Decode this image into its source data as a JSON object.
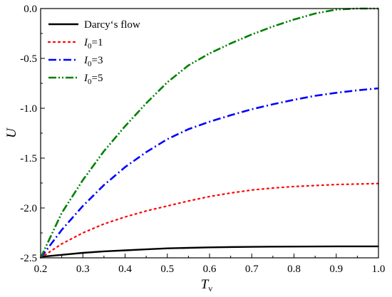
{
  "chart_data": {
    "type": "line",
    "xlabel": "T",
    "xlabel_sub": "v",
    "ylabel": "U",
    "xlim": [
      0.2,
      1.0
    ],
    "ylim": [
      -2.5,
      0.0
    ],
    "xticks": [
      "0.2",
      "0.3",
      "0.4",
      "0.5",
      "0.6",
      "0.7",
      "0.8",
      "0.9",
      "1.0"
    ],
    "yticks": [
      "-2.5",
      "-2.0",
      "-1.5",
      "-1.0",
      "-0.5",
      "0.0"
    ],
    "grid": false,
    "legend_position": "top-left",
    "series": [
      {
        "name": "Darcy‘s flow",
        "legend": {
          "text": "Darcy‘s flow"
        },
        "color": "#000000",
        "dash": "solid",
        "x": [
          0.2,
          0.25,
          0.3,
          0.35,
          0.4,
          0.45,
          0.5,
          0.55,
          0.6,
          0.65,
          0.7,
          0.75,
          0.8,
          0.85,
          0.9,
          0.95,
          1.0
        ],
        "y": [
          -2.49,
          -2.47,
          -2.45,
          -2.435,
          -2.425,
          -2.415,
          -2.405,
          -2.4,
          -2.395,
          -2.392,
          -2.39,
          -2.388,
          -2.387,
          -2.386,
          -2.385,
          -2.385,
          -2.385
        ]
      },
      {
        "name": "I0=1",
        "legend": {
          "symbol": "I",
          "sub": "0",
          "rest": "=1"
        },
        "color": "#ff0000",
        "dash": "dot",
        "x": [
          0.2,
          0.25,
          0.3,
          0.35,
          0.4,
          0.45,
          0.5,
          0.55,
          0.6,
          0.65,
          0.7,
          0.75,
          0.8,
          0.85,
          0.9,
          0.95,
          1.0
        ],
        "y": [
          -2.5,
          -2.36,
          -2.25,
          -2.16,
          -2.09,
          -2.03,
          -1.98,
          -1.93,
          -1.885,
          -1.85,
          -1.82,
          -1.8,
          -1.785,
          -1.775,
          -1.765,
          -1.76,
          -1.755
        ]
      },
      {
        "name": "I0=3",
        "legend": {
          "symbol": "I",
          "sub": "0",
          "rest": "=3"
        },
        "color": "#0000ff",
        "dash": "dashdot",
        "x": [
          0.2,
          0.25,
          0.3,
          0.35,
          0.4,
          0.45,
          0.5,
          0.55,
          0.6,
          0.65,
          0.7,
          0.75,
          0.8,
          0.85,
          0.9,
          0.95,
          1.0
        ],
        "y": [
          -2.5,
          -2.22,
          -1.98,
          -1.77,
          -1.59,
          -1.44,
          -1.31,
          -1.21,
          -1.135,
          -1.07,
          -1.01,
          -0.96,
          -0.915,
          -0.875,
          -0.845,
          -0.82,
          -0.8
        ]
      },
      {
        "name": "I0=5",
        "legend": {
          "symbol": "I",
          "sub": "0",
          "rest": "=5"
        },
        "color": "#008000",
        "dash": "dashdotdot",
        "x": [
          0.2,
          0.25,
          0.3,
          0.35,
          0.4,
          0.45,
          0.5,
          0.55,
          0.6,
          0.65,
          0.7,
          0.75,
          0.8,
          0.85,
          0.9,
          0.95,
          1.0
        ],
        "y": [
          -2.5,
          -2.05,
          -1.72,
          -1.43,
          -1.18,
          -0.95,
          -0.74,
          -0.57,
          -0.45,
          -0.35,
          -0.26,
          -0.18,
          -0.11,
          -0.05,
          -0.01,
          0.0,
          0.0
        ]
      }
    ]
  }
}
